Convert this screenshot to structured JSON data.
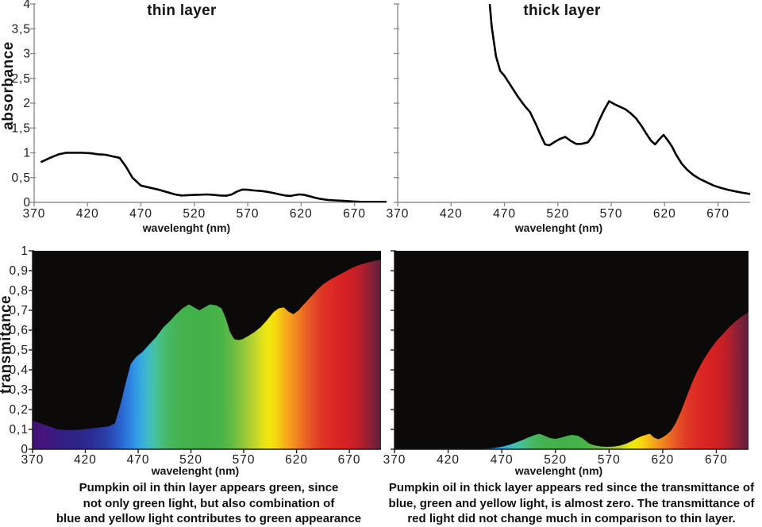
{
  "figure": {
    "background": "#ffffff",
    "description": "Absorbance and transmittance spectra of pumpkin oil in thin and thick layer"
  },
  "colors": {
    "curve": "#000000",
    "axis_top_charts": "#8f8f8f",
    "axis_bottom_charts": "#1a1a1a",
    "tick_label": "#1b1b1b",
    "plot_background_bottom": "#0b0a08"
  },
  "spectrum_stops": [
    {
      "nm": 370,
      "c": "#3f1173"
    },
    {
      "nm": 382,
      "c": "#45157d"
    },
    {
      "nm": 395,
      "c": "#351d82"
    },
    {
      "nm": 410,
      "c": "#2e2387"
    },
    {
      "nm": 425,
      "c": "#2b2c93"
    },
    {
      "nm": 438,
      "c": "#2a3ca3"
    },
    {
      "nm": 448,
      "c": "#2a53bd"
    },
    {
      "nm": 457,
      "c": "#2b70d8"
    },
    {
      "nm": 465,
      "c": "#2e8ee5"
    },
    {
      "nm": 472,
      "c": "#36a7e0"
    },
    {
      "nm": 479,
      "c": "#3fbac6"
    },
    {
      "nm": 486,
      "c": "#45c09f"
    },
    {
      "nm": 493,
      "c": "#47bd7b"
    },
    {
      "nm": 500,
      "c": "#46b75f"
    },
    {
      "nm": 510,
      "c": "#43b24e"
    },
    {
      "nm": 530,
      "c": "#42b14a"
    },
    {
      "nm": 548,
      "c": "#48b348"
    },
    {
      "nm": 560,
      "c": "#67bb42"
    },
    {
      "nm": 570,
      "c": "#92c739"
    },
    {
      "nm": 580,
      "c": "#bdd52d"
    },
    {
      "nm": 588,
      "c": "#e2e31b"
    },
    {
      "nm": 594,
      "c": "#f3e80e"
    },
    {
      "nm": 600,
      "c": "#f6d910"
    },
    {
      "nm": 606,
      "c": "#f5bd17"
    },
    {
      "nm": 613,
      "c": "#f4a01d"
    },
    {
      "nm": 620,
      "c": "#f1851f"
    },
    {
      "nm": 628,
      "c": "#ea6624"
    },
    {
      "nm": 636,
      "c": "#e44b27"
    },
    {
      "nm": 645,
      "c": "#df3425"
    },
    {
      "nm": 655,
      "c": "#db2824"
    },
    {
      "nm": 666,
      "c": "#d62124"
    },
    {
      "nm": 676,
      "c": "#c61f27"
    },
    {
      "nm": 684,
      "c": "#a81f2f"
    },
    {
      "nm": 692,
      "c": "#812038"
    },
    {
      "nm": 700,
      "c": "#5c1e3a"
    }
  ],
  "chart_data": [
    {
      "id": "absorbance-thin",
      "type": "line",
      "title": "thin layer",
      "xlabel": "wavelenght (nm)",
      "ylabel": "absorbance",
      "xlim": [
        370,
        700
      ],
      "ylim": [
        0,
        4
      ],
      "grid": false,
      "x_ticks": [
        370,
        420,
        470,
        520,
        570,
        620,
        670
      ],
      "y_tick_values": [
        0,
        0.5,
        1,
        1.5,
        2,
        2.5,
        3,
        3.5,
        4
      ],
      "y_tick_labels": [
        "0",
        "0,5",
        "1",
        "1,5",
        "2",
        "2,5",
        "3",
        "3,5",
        "4"
      ],
      "show_y_tick_labels": true,
      "x": [
        377,
        385,
        393,
        400,
        408,
        415,
        423,
        430,
        437,
        443,
        450,
        456,
        462,
        470,
        478,
        486,
        494,
        502,
        508,
        514,
        520,
        526,
        532,
        538,
        544,
        550,
        555,
        560,
        565,
        570,
        576,
        582,
        588,
        594,
        600,
        605,
        610,
        614,
        618,
        622,
        627,
        632,
        638,
        645,
        652,
        660,
        668,
        676,
        684,
        692,
        700
      ],
      "y": [
        0.82,
        0.9,
        0.97,
        1.0,
        1.0,
        1.0,
        0.99,
        0.97,
        0.96,
        0.93,
        0.9,
        0.72,
        0.5,
        0.34,
        0.3,
        0.26,
        0.21,
        0.16,
        0.14,
        0.145,
        0.15,
        0.155,
        0.16,
        0.15,
        0.14,
        0.135,
        0.16,
        0.22,
        0.26,
        0.255,
        0.24,
        0.23,
        0.215,
        0.19,
        0.16,
        0.14,
        0.13,
        0.145,
        0.16,
        0.155,
        0.13,
        0.1,
        0.07,
        0.05,
        0.04,
        0.03,
        0.02,
        0.012,
        0.01,
        0.01,
        0.01
      ]
    },
    {
      "id": "absorbance-thick",
      "type": "line",
      "title": "thick layer",
      "xlabel": "wavelenght (nm)",
      "ylabel": "",
      "xlim": [
        370,
        700
      ],
      "ylim": [
        0,
        4
      ],
      "grid": false,
      "x_ticks": [
        370,
        420,
        470,
        520,
        570,
        620,
        670
      ],
      "y_tick_values": [
        0,
        0.5,
        1,
        1.5,
        2,
        2.5,
        3,
        3.5,
        4
      ],
      "y_tick_labels": [
        "0",
        "0,5",
        "1",
        "1,5",
        "2",
        "2,5",
        "3",
        "3,5",
        "4"
      ],
      "show_y_tick_labels": false,
      "x": [
        455,
        458,
        462,
        466,
        470,
        476,
        482,
        488,
        494,
        500,
        504,
        508,
        512,
        517,
        522,
        527,
        532,
        537,
        542,
        548,
        553,
        558,
        563,
        568,
        573,
        578,
        583,
        588,
        593,
        598,
        603,
        607,
        611,
        615,
        619,
        623,
        627,
        631,
        636,
        641,
        647,
        653,
        659,
        666,
        673,
        680,
        687,
        694,
        700
      ],
      "y": [
        4.3,
        3.55,
        2.95,
        2.65,
        2.55,
        2.35,
        2.15,
        1.97,
        1.82,
        1.55,
        1.35,
        1.17,
        1.15,
        1.22,
        1.28,
        1.32,
        1.24,
        1.18,
        1.18,
        1.21,
        1.35,
        1.62,
        1.85,
        2.04,
        1.98,
        1.93,
        1.88,
        1.8,
        1.7,
        1.55,
        1.38,
        1.25,
        1.17,
        1.27,
        1.36,
        1.25,
        1.12,
        0.95,
        0.78,
        0.66,
        0.55,
        0.47,
        0.41,
        0.34,
        0.29,
        0.25,
        0.22,
        0.19,
        0.17
      ]
    },
    {
      "id": "transmittance-thin",
      "type": "area-spectrum",
      "title": "",
      "xlabel": "wavelenght (nm)",
      "ylabel": "transmitance",
      "xlim": [
        370,
        700
      ],
      "ylim": [
        0,
        1
      ],
      "grid": false,
      "x_ticks": [
        370,
        420,
        470,
        520,
        570,
        620,
        670
      ],
      "y_tick_values": [
        0,
        0.1,
        0.2,
        0.3,
        0.4,
        0.5,
        0.6,
        0.7,
        0.8,
        0.9,
        1
      ],
      "y_tick_labels": [
        "0",
        "0,1",
        "0,2",
        "0,3",
        "0,4",
        "0,5",
        "0,6",
        "0,7",
        "0,8",
        "0,9",
        "1"
      ],
      "show_y_tick_labels": true,
      "x": [
        370,
        378,
        386,
        394,
        402,
        410,
        418,
        426,
        434,
        442,
        448,
        453,
        458,
        463,
        468,
        474,
        480,
        487,
        494,
        500,
        506,
        512,
        518,
        523,
        528,
        533,
        538,
        544,
        549,
        553,
        557,
        561,
        565,
        569,
        574,
        580,
        586,
        592,
        598,
        603,
        608,
        612,
        617,
        622,
        627,
        633,
        639,
        645,
        652,
        659,
        666,
        673,
        680,
        687,
        694,
        700
      ],
      "y": [
        0.145,
        0.13,
        0.115,
        0.1,
        0.097,
        0.097,
        0.1,
        0.105,
        0.11,
        0.115,
        0.13,
        0.22,
        0.33,
        0.43,
        0.465,
        0.49,
        0.525,
        0.565,
        0.615,
        0.645,
        0.68,
        0.71,
        0.73,
        0.715,
        0.7,
        0.715,
        0.73,
        0.725,
        0.71,
        0.66,
        0.59,
        0.555,
        0.55,
        0.555,
        0.57,
        0.59,
        0.615,
        0.65,
        0.69,
        0.71,
        0.715,
        0.695,
        0.68,
        0.7,
        0.73,
        0.765,
        0.8,
        0.83,
        0.855,
        0.875,
        0.895,
        0.915,
        0.93,
        0.94,
        0.95,
        0.955
      ]
    },
    {
      "id": "transmittance-thick",
      "type": "area-spectrum",
      "title": "",
      "xlabel": "wavelenght (nm)",
      "ylabel": "",
      "xlim": [
        370,
        700
      ],
      "ylim": [
        0,
        1
      ],
      "grid": false,
      "x_ticks": [
        370,
        420,
        470,
        520,
        570,
        620,
        670
      ],
      "y_tick_values": [
        0,
        0.1,
        0.2,
        0.3,
        0.4,
        0.5,
        0.6,
        0.7,
        0.8,
        0.9,
        1
      ],
      "y_tick_labels": [
        "0",
        "0,1",
        "0,2",
        "0,3",
        "0,4",
        "0,5",
        "0,6",
        "0,7",
        "0,8",
        "0,9",
        "1"
      ],
      "show_y_tick_labels": false,
      "x": [
        370,
        400,
        430,
        450,
        460,
        466,
        472,
        478,
        484,
        490,
        496,
        501,
        505,
        510,
        515,
        520,
        525,
        530,
        535,
        541,
        546,
        551,
        556,
        562,
        568,
        574,
        580,
        586,
        591,
        596,
        600,
        604,
        608,
        612,
        616,
        620,
        624,
        628,
        632,
        637,
        642,
        647,
        652,
        658,
        664,
        670,
        676,
        682,
        688,
        694,
        700
      ],
      "y": [
        0.0,
        0.0,
        0.0,
        0.002,
        0.005,
        0.009,
        0.015,
        0.024,
        0.035,
        0.048,
        0.062,
        0.072,
        0.078,
        0.068,
        0.056,
        0.052,
        0.058,
        0.066,
        0.072,
        0.068,
        0.052,
        0.03,
        0.02,
        0.014,
        0.012,
        0.013,
        0.018,
        0.028,
        0.04,
        0.055,
        0.065,
        0.072,
        0.078,
        0.058,
        0.05,
        0.06,
        0.075,
        0.095,
        0.13,
        0.19,
        0.26,
        0.33,
        0.39,
        0.45,
        0.5,
        0.545,
        0.58,
        0.615,
        0.645,
        0.67,
        0.69
      ]
    }
  ],
  "captions": {
    "thin": [
      "Pumpkin oil in thin layer appears green, since",
      "not only green light, but also combination of",
      "blue and yellow light contributes to green appearance"
    ],
    "thick": [
      "Pumpkin oil in thick layer appears red since the transmittance of",
      "blue, green and yellow light, is almost zero. The transmittance of",
      "red light did not change much in comparison to thin layer."
    ]
  }
}
